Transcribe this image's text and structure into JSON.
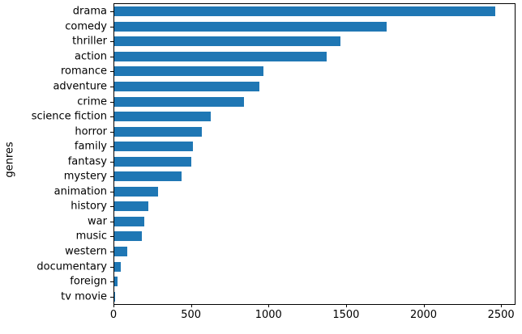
{
  "chart_data": {
    "type": "bar",
    "orientation": "horizontal",
    "title": "",
    "xlabel": "",
    "ylabel": "genres",
    "categories": [
      "drama",
      "comedy",
      "thriller",
      "action",
      "romance",
      "adventure",
      "crime",
      "science fiction",
      "horror",
      "family",
      "fantasy",
      "mystery",
      "animation",
      "history",
      "war",
      "music",
      "western",
      "documentary",
      "foreign",
      "tv movie"
    ],
    "values": [
      2460,
      1755,
      1460,
      1370,
      960,
      935,
      835,
      620,
      565,
      505,
      495,
      435,
      280,
      220,
      195,
      178,
      82,
      40,
      19,
      1
    ],
    "xticks": [
      0,
      500,
      1000,
      1500,
      2000,
      2500
    ],
    "xlim": [
      0,
      2583
    ],
    "bar_color": "#1f77b4",
    "grid": false,
    "legend_position": "none"
  }
}
